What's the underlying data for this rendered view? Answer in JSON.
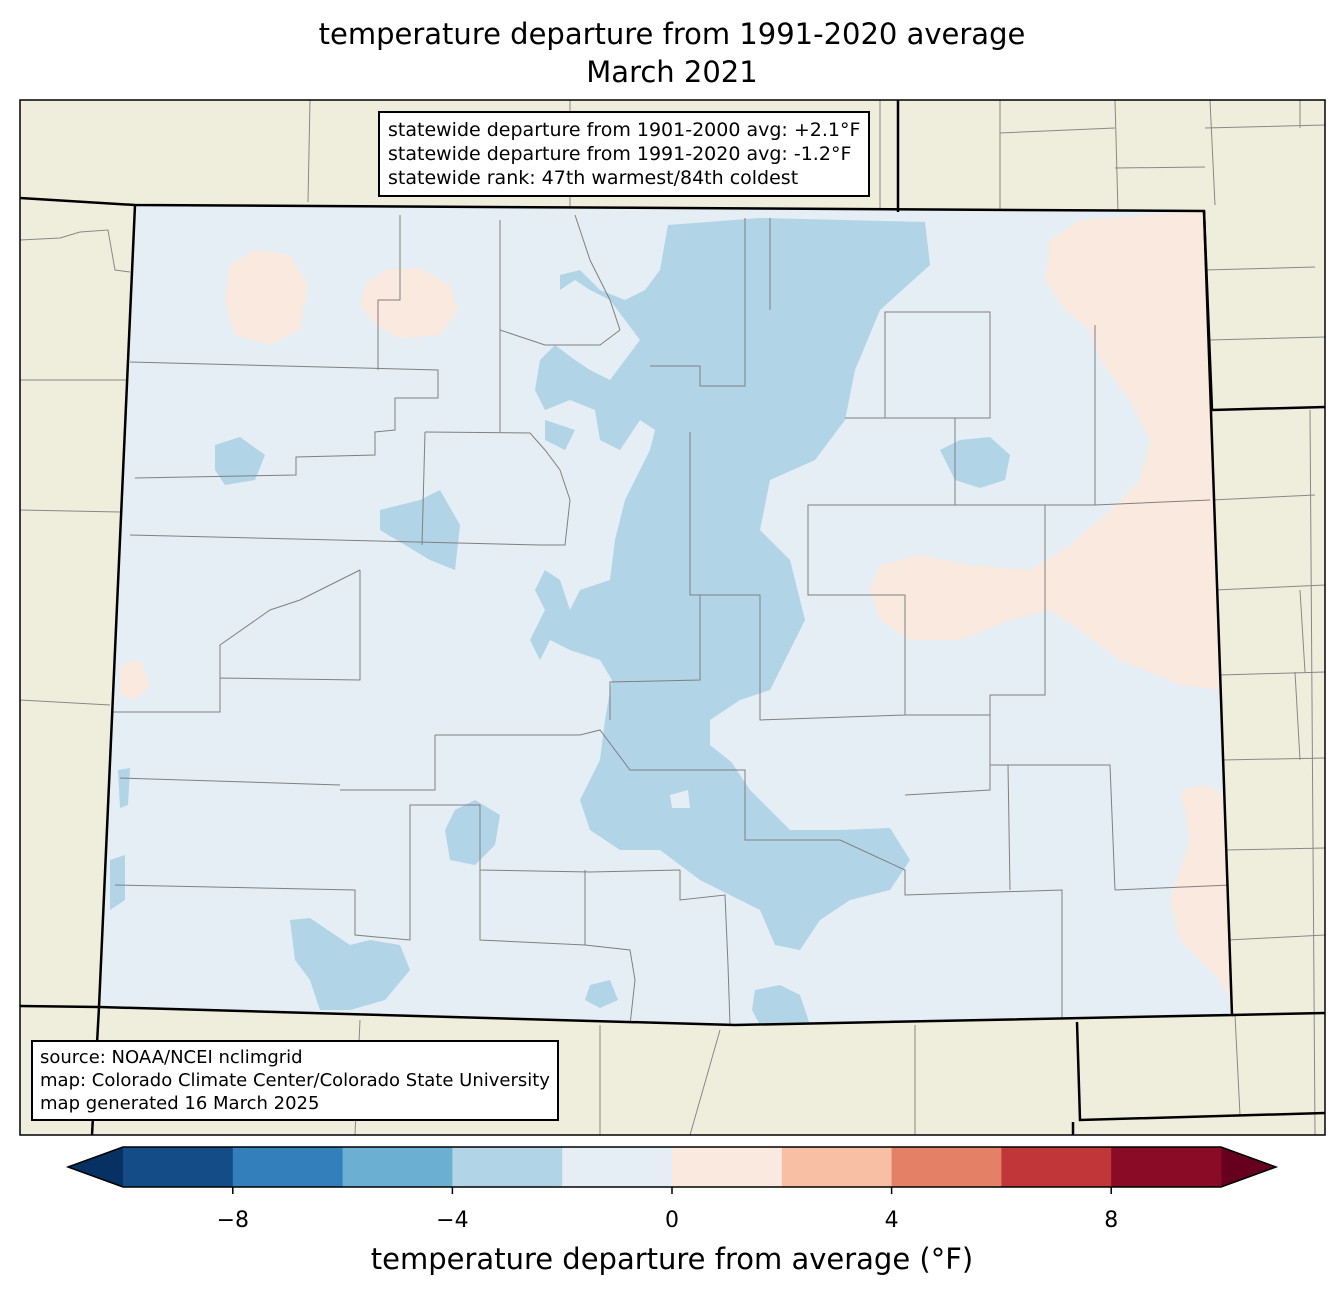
{
  "title": {
    "line1": "temperature departure from 1991-2020 average",
    "line2": "March 2021"
  },
  "stats_box": {
    "line1": "statewide departure from 1901-2000 avg: +2.1°F",
    "line2": "statewide departure from 1991-2020 avg: -1.2°F",
    "line3": "statewide rank: 47th warmest/84th coldest"
  },
  "source_box": {
    "line1": "source: NOAA/NCEI nclimgrid",
    "line2": "map: Colorado Climate Center/Colorado State University",
    "line3": "map generated 16 March 2025"
  },
  "colorbar": {
    "label": "temperature departure from average (°F)",
    "range": [
      -10,
      10
    ],
    "bounds": [
      -10,
      -8,
      -6,
      -4,
      -2,
      0,
      2,
      4,
      6,
      8,
      10
    ],
    "colors": [
      "#134c87",
      "#327fbb",
      "#6bafd2",
      "#b1d4e6",
      "#e4eef4",
      "#f9e9df",
      "#f8bfa4",
      "#e48066",
      "#c13639",
      "#8a0b25"
    ],
    "extend_low_color": "#073063",
    "extend_high_color": "#67001f",
    "ticks": [
      "−8",
      "−4",
      "0",
      "4",
      "8"
    ],
    "tick_values": [
      -8,
      -4,
      0,
      4,
      8
    ]
  },
  "map_colors": {
    "land": "#efeedd",
    "state_fill": "#e4eef4",
    "cool": "#b1d4e6",
    "warm": "#f9e9df"
  }
}
